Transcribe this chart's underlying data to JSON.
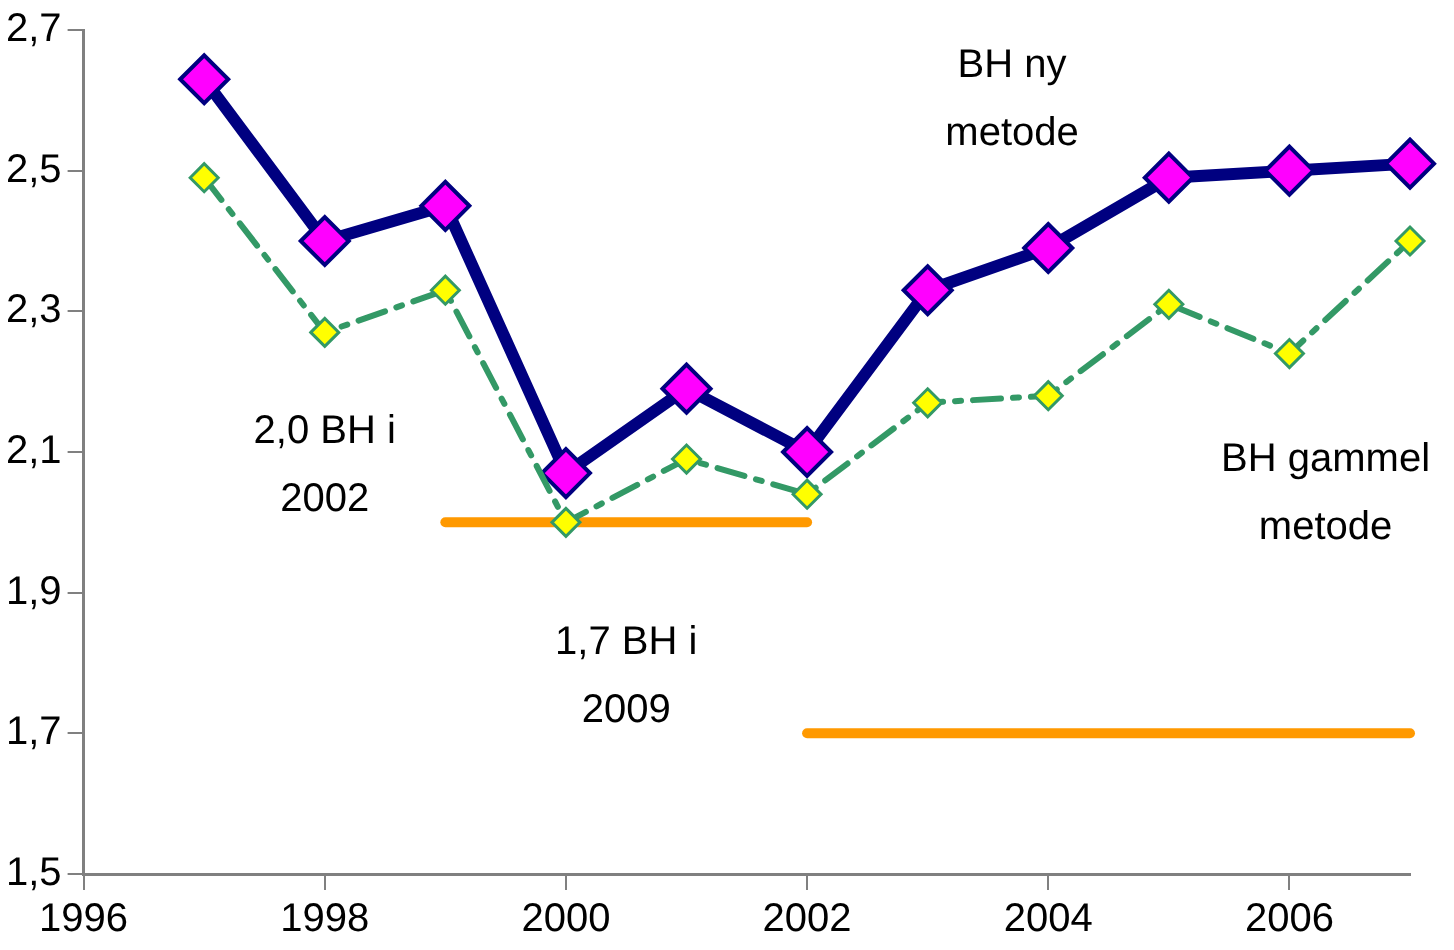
{
  "chart_data": {
    "type": "line",
    "x": [
      1997,
      1998,
      1999,
      2000,
      2001,
      2002,
      2003,
      2004,
      2005,
      2006,
      2007
    ],
    "series": [
      {
        "name": "BH ny metode",
        "color": "#000080",
        "line_style": "solid",
        "values": [
          2.63,
          2.4,
          2.45,
          2.07,
          2.19,
          2.1,
          2.33,
          2.39,
          2.49,
          2.5,
          2.51
        ]
      },
      {
        "name": "BH gammel metode",
        "color": "#339966",
        "line_style": "dashed",
        "values": [
          2.49,
          2.27,
          2.33,
          2.0,
          2.09,
          2.04,
          2.17,
          2.18,
          2.31,
          2.24,
          2.4
        ]
      },
      {
        "color": "#ff9900",
        "marker": "none",
        "line_style": "solid",
        "x": [
          1999,
          2002
        ],
        "values": [
          2.0,
          2.0
        ]
      },
      {
        "color": "#ff9900",
        "marker": "none",
        "line_style": "solid",
        "x": [
          2002,
          2007
        ],
        "values": [
          1.7,
          1.7
        ]
      }
    ],
    "annotations": [
      "2,0 BH i\n2002",
      "1,7 BH i\n2009"
    ],
    "marker": "diamond",
    "legend": false,
    "grid": false,
    "xlim": [
      1996,
      2007
    ],
    "xticks": [
      1996,
      1998,
      2000,
      2002,
      2004,
      2006
    ],
    "ylim": [
      1.5,
      2.7
    ],
    "yticks": [
      {
        "value": 1.5,
        "label": "1,5"
      },
      {
        "value": 1.7,
        "label": "1,7"
      },
      {
        "value": 1.9,
        "label": "1,9"
      },
      {
        "value": 2.1,
        "label": "2,1"
      },
      {
        "value": 2.3,
        "label": "2,3"
      },
      {
        "value": 2.5,
        "label": "2,5"
      },
      {
        "value": 2.7,
        "label": "2,7"
      }
    ]
  }
}
